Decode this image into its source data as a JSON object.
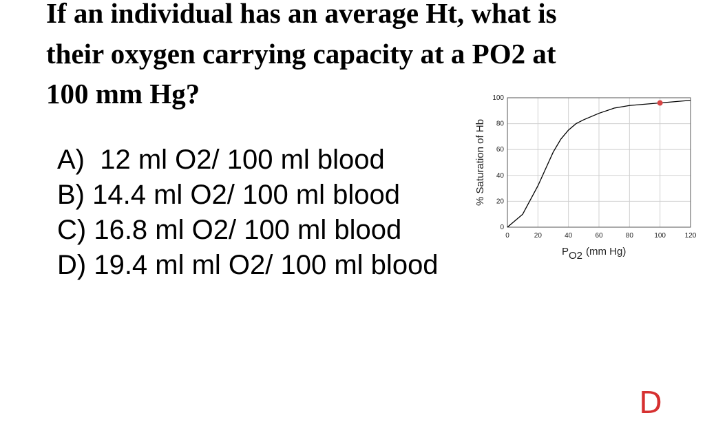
{
  "question": [
    "If an individual has an average Ht, what is",
    "their oxygen carrying capacity at a PO2 at",
    "100 mm Hg?"
  ],
  "options": [
    "A)  12 ml O2/ 100 ml blood",
    "B) 14.4 ml O2/ 100 ml blood",
    "C) 16.8 ml O2/ 100 ml blood",
    "D) 19.4 ml ml O2/ 100 ml blood"
  ],
  "handwritten_answer": "D",
  "chart_data": {
    "type": "line",
    "x_label": "P",
    "x_label_sub": "O2",
    "x_label_rest": "(mm Hg)",
    "y_label": "% Saturation of Hb",
    "x": [
      0,
      10,
      20,
      25,
      30,
      35,
      40,
      45,
      50,
      60,
      70,
      80,
      90,
      100,
      110,
      120
    ],
    "series": [
      {
        "color": "#000000",
        "values": [
          0,
          10,
          32,
          45,
          58,
          68,
          75,
          80,
          83,
          88,
          92,
          94,
          95,
          96,
          97,
          98
        ]
      }
    ],
    "highlight": {
      "x": 100,
      "y": 96,
      "color": "#d84545"
    },
    "xlim": [
      0,
      120
    ],
    "xticks": [
      0,
      20,
      40,
      60,
      80,
      100,
      120
    ],
    "ylim": [
      0,
      100
    ],
    "yticks": [
      0,
      20,
      40,
      60,
      80,
      100
    ],
    "grid": true
  }
}
